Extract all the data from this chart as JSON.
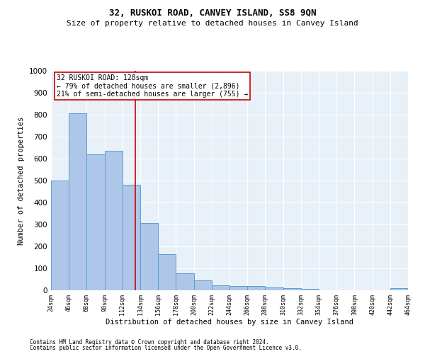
{
  "title": "32, RUSKOI ROAD, CANVEY ISLAND, SS8 9QN",
  "subtitle": "Size of property relative to detached houses in Canvey Island",
  "xlabel": "Distribution of detached houses by size in Canvey Island",
  "ylabel": "Number of detached properties",
  "footer_line1": "Contains HM Land Registry data © Crown copyright and database right 2024.",
  "footer_line2": "Contains public sector information licensed under the Open Government Licence v3.0.",
  "annotation_line1": "32 RUSKOI ROAD: 128sqm",
  "annotation_line2": "← 79% of detached houses are smaller (2,896)",
  "annotation_line3": "21% of semi-detached houses are larger (755) →",
  "bar_color": "#aec6e8",
  "bar_edge_color": "#5a9fd4",
  "ref_line_color": "#cc0000",
  "ref_line_x": 128,
  "annotation_box_color": "#ffffff",
  "annotation_box_edge": "#cc0000",
  "bins": [
    24,
    46,
    68,
    90,
    112,
    134,
    156,
    178,
    200,
    222,
    244,
    266,
    288,
    310,
    332,
    354,
    376,
    398,
    420,
    442,
    464
  ],
  "values": [
    500,
    805,
    620,
    635,
    480,
    308,
    163,
    78,
    44,
    23,
    20,
    18,
    12,
    10,
    8,
    0,
    0,
    0,
    0,
    10
  ],
  "ylim": [
    0,
    1000
  ],
  "yticks": [
    0,
    100,
    200,
    300,
    400,
    500,
    600,
    700,
    800,
    900,
    1000
  ],
  "plot_bg_color": "#e8f0f8",
  "grid_color": "#ffffff",
  "title_fontsize": 9,
  "subtitle_fontsize": 8,
  "ylabel_fontsize": 7.5,
  "xlabel_fontsize": 7.5,
  "ytick_fontsize": 7.5,
  "xtick_fontsize": 6,
  "annotation_fontsize": 7,
  "footer_fontsize": 5.5
}
